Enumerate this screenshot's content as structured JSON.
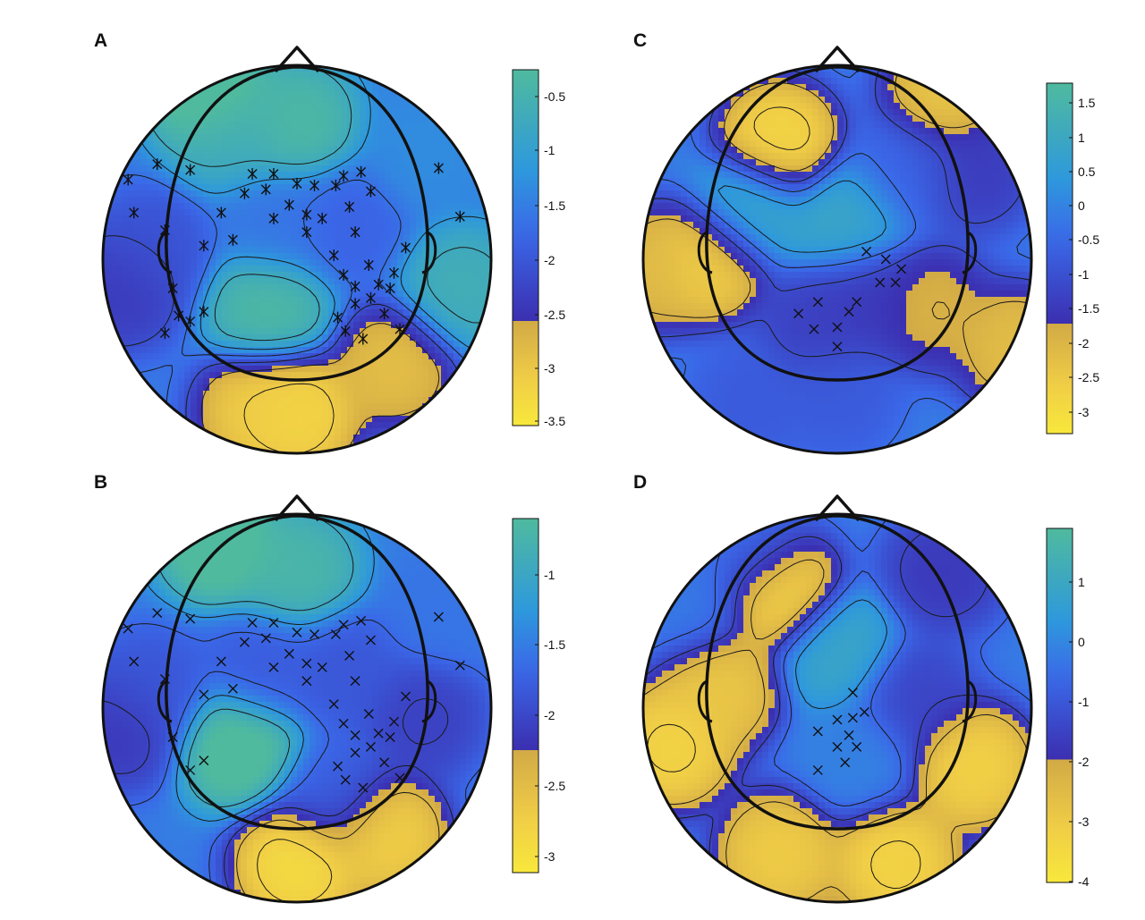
{
  "chart_data": [
    {
      "type": "heatmap",
      "subtype": "scalp-topography",
      "panel_label": "A",
      "colorbar": {
        "ticks": [
          -0.5,
          -1,
          -1.5,
          -2,
          -2.5,
          -3,
          -3.5
        ],
        "tick_labels": [
          "-0.5",
          "-1",
          "-1.5",
          "-2",
          "-2.5",
          "-3",
          "-3.5"
        ],
        "range": [
          -3.6,
          -0.2
        ],
        "threshold": -2.6,
        "colors_above_threshold": [
          "#4bb3a0",
          "#3a8ee0",
          "#3b2fb0"
        ],
        "colors_below_threshold": [
          "#f6e44a",
          "#d6b14a"
        ]
      },
      "electrode_marker": "asterisk",
      "blobs": [
        {
          "x": -0.9,
          "y": -0.15,
          "value": -2.5
        },
        {
          "x": -0.75,
          "y": 0.05,
          "value": -2.1
        },
        {
          "x": 0.26,
          "y": 0.18,
          "value": -1.85
        },
        {
          "x": -0.1,
          "y": 0.18,
          "value": -1.6
        },
        {
          "x": 0.0,
          "y": 0.7,
          "value": -0.2
        },
        {
          "x": -0.45,
          "y": 0.85,
          "value": 0.2
        },
        {
          "x": -0.35,
          "y": 0.65,
          "value": -0.6
        },
        {
          "x": -0.15,
          "y": -0.25,
          "value": -0.2
        },
        {
          "x": 0.0,
          "y": -0.8,
          "value": -3.4
        },
        {
          "x": -0.2,
          "y": -0.78,
          "value": -3.2
        },
        {
          "x": 0.5,
          "y": -0.55,
          "value": -3.0
        },
        {
          "x": 0.65,
          "y": 0.55,
          "value": -1.3
        },
        {
          "x": 0.85,
          "y": -0.15,
          "value": -0.5
        }
      ]
    },
    {
      "type": "heatmap",
      "subtype": "scalp-topography",
      "panel_label": "B",
      "colorbar": {
        "ticks": [
          -1,
          -1.5,
          -2,
          -2.5,
          -3
        ],
        "tick_labels": [
          "-1",
          "-1.5",
          "-2",
          "-2.5",
          "-3"
        ],
        "range": [
          -3.2,
          -0.6
        ],
        "threshold": -2.3,
        "colors_above_threshold": [
          "#4bb3a0",
          "#3a8ee0",
          "#3b2fb0"
        ],
        "colors_below_threshold": [
          "#f6e44a",
          "#d6b14a"
        ]
      },
      "electrode_marker": "cross",
      "blobs": [
        {
          "x": -0.9,
          "y": -0.1,
          "value": -2.25
        },
        {
          "x": -0.75,
          "y": 0.1,
          "value": -1.9
        },
        {
          "x": 0.25,
          "y": 0.2,
          "value": -1.9
        },
        {
          "x": -0.17,
          "y": 0.2,
          "value": -1.85
        },
        {
          "x": 0.65,
          "y": -0.05,
          "value": -2.15
        },
        {
          "x": 0.2,
          "y": -0.45,
          "value": -1.8
        },
        {
          "x": 0.0,
          "y": 0.7,
          "value": -0.65
        },
        {
          "x": -0.4,
          "y": 0.85,
          "value": -0.4
        },
        {
          "x": -0.3,
          "y": -0.2,
          "value": -0.4
        },
        {
          "x": 0.0,
          "y": -0.8,
          "value": -3.1
        },
        {
          "x": 0.45,
          "y": -0.65,
          "value": -2.9
        },
        {
          "x": 0.75,
          "y": 0.5,
          "value": -1.6
        }
      ]
    },
    {
      "type": "heatmap",
      "subtype": "scalp-topography",
      "panel_label": "C",
      "colorbar": {
        "ticks": [
          1.5,
          1,
          0.5,
          0,
          -0.5,
          -1,
          -1.5,
          -2,
          -2.5,
          -3
        ],
        "tick_labels": [
          "1.5",
          "1",
          "0.5",
          "0",
          "-0.5",
          "-1",
          "-1.5",
          "-2",
          "-2.5",
          "-3"
        ],
        "range": [
          -3.3,
          1.8
        ],
        "threshold": -1.7,
        "colors_above_threshold": [
          "#4bb3a0",
          "#3a8ee0",
          "#3b2fb0"
        ],
        "colors_below_threshold": [
          "#f6e44a",
          "#d6b14a"
        ]
      },
      "electrode_marker": "cross",
      "blobs": [
        {
          "x": -0.3,
          "y": 0.6,
          "value": -3.0
        },
        {
          "x": -0.65,
          "y": 0.0,
          "value": -2.8
        },
        {
          "x": -0.95,
          "y": -0.05,
          "value": -2.2
        },
        {
          "x": 0.35,
          "y": 0.45,
          "value": -0.6
        },
        {
          "x": 0.15,
          "y": -0.2,
          "value": -1.55
        },
        {
          "x": -0.1,
          "y": -0.35,
          "value": -1.4
        },
        {
          "x": -0.45,
          "y": -0.75,
          "value": -0.8
        },
        {
          "x": 0.55,
          "y": 0.85,
          "value": -2.5
        },
        {
          "x": 0.7,
          "y": 0.45,
          "value": -1.5
        },
        {
          "x": 0.92,
          "y": -0.45,
          "value": -2.3
        },
        {
          "x": 0.48,
          "y": -0.25,
          "value": -2.0
        },
        {
          "x": 0.0,
          "y": -0.7,
          "value": -0.8
        },
        {
          "x": 0.05,
          "y": 0.2,
          "value": 1.0
        },
        {
          "x": -0.45,
          "y": 0.25,
          "value": 1.1
        }
      ]
    },
    {
      "type": "heatmap",
      "subtype": "scalp-topography",
      "panel_label": "D",
      "colorbar": {
        "ticks": [
          1,
          0,
          -1,
          -2,
          -3,
          -4
        ],
        "tick_labels": [
          "1",
          "0",
          "-1",
          "-2",
          "-3",
          "-4"
        ],
        "range": [
          -4.0,
          1.9
        ],
        "threshold": -1.95,
        "colors_above_threshold": [
          "#4bb3a0",
          "#3a8ee0",
          "#3b2fb0"
        ],
        "colors_below_threshold": [
          "#f6e44a",
          "#d6b14a"
        ]
      },
      "electrode_marker": "cross",
      "blobs": [
        {
          "x": 0.55,
          "y": 0.7,
          "value": -1.8
        },
        {
          "x": -0.45,
          "y": 0.8,
          "value": -0.5
        },
        {
          "x": -0.75,
          "y": 0.55,
          "value": -0.3
        },
        {
          "x": -0.3,
          "y": 0.6,
          "value": -3.6
        },
        {
          "x": -0.6,
          "y": 0.1,
          "value": -3.0
        },
        {
          "x": -0.85,
          "y": -0.2,
          "value": -3.5
        },
        {
          "x": 0.1,
          "y": -0.25,
          "value": -0.1
        },
        {
          "x": 0.7,
          "y": -0.3,
          "value": -3.4
        },
        {
          "x": 0.4,
          "y": 0.05,
          "value": -1.5
        },
        {
          "x": -0.3,
          "y": -0.75,
          "value": -3.2
        },
        {
          "x": 0.3,
          "y": -0.8,
          "value": -3.5
        },
        {
          "x": 0.0,
          "y": 0.3,
          "value": 1.0
        }
      ]
    }
  ]
}
